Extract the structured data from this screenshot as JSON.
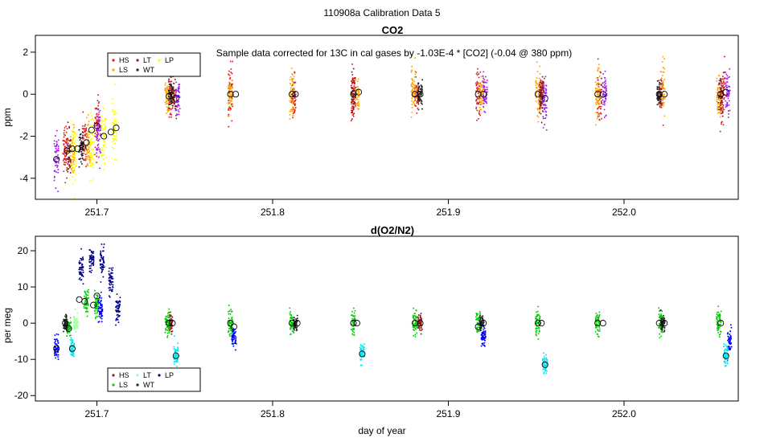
{
  "figure": {
    "suptitle": "110908a   Calibration Data 5",
    "xlabel": "day of year"
  },
  "legend": {
    "entries": [
      {
        "label": "HS",
        "co2_color": "#e41a1c",
        "o2_color": "#8b1a1a"
      },
      {
        "label": "LT",
        "co2_color": "#8b1a1a",
        "o2_color": "#a0ffa0"
      },
      {
        "label": "LP",
        "co2_color": "#ffff00",
        "o2_color": "#00008b"
      },
      {
        "label": "LS",
        "co2_color": "#ffa500",
        "o2_color": "#00cc00"
      },
      {
        "label": "WT",
        "co2_color": "#222222",
        "o2_color": "#222222"
      }
    ]
  },
  "chart_data": [
    {
      "type": "scatter",
      "title": "CO2",
      "annotation": "Sample data corrected for 13C in cal gases by -1.03E-4 * [CO2] (-0.04 @ 380 ppm)",
      "xlabel": "",
      "ylabel": "ppm",
      "xlim": [
        251.665,
        252.065
      ],
      "ylim": [
        -5.0,
        2.8
      ],
      "xticks": [
        251.7,
        251.8,
        251.9,
        252.0
      ],
      "xtick_labels": [
        "251.7",
        "251.8",
        "251.9",
        "252.0"
      ],
      "yticks": [
        2,
        0,
        -2,
        -4
      ],
      "ytick_labels": [
        "2",
        "0",
        "-2",
        "-4"
      ],
      "series": [
        {
          "name": "HS",
          "color": "#e41a1c",
          "clusters": [
            {
              "x": 251.682,
              "y": -2.6,
              "sd": 0.6
            },
            {
              "x": 251.693,
              "y": -2.3,
              "sd": 0.6
            },
            {
              "x": 251.7,
              "y": -1.5,
              "sd": 0.6
            },
            {
              "x": 251.742,
              "y": 0.0,
              "sd": 0.5
            },
            {
              "x": 251.776,
              "y": 0.0,
              "sd": 0.6
            },
            {
              "x": 251.812,
              "y": 0.0,
              "sd": 0.4
            },
            {
              "x": 251.846,
              "y": 0.0,
              "sd": 0.6
            },
            {
              "x": 251.882,
              "y": 0.0,
              "sd": 0.4
            },
            {
              "x": 251.917,
              "y": 0.0,
              "sd": 0.6
            },
            {
              "x": 251.953,
              "y": 0.0,
              "sd": 0.4
            },
            {
              "x": 251.986,
              "y": 0.0,
              "sd": 0.6
            },
            {
              "x": 252.021,
              "y": 0.0,
              "sd": 0.4
            },
            {
              "x": 252.056,
              "y": 0.0,
              "sd": 0.7
            }
          ]
        },
        {
          "name": "LS",
          "color": "#ffa500",
          "clusters": [
            {
              "x": 251.686,
              "y": -2.9,
              "sd": 0.6
            },
            {
              "x": 251.695,
              "y": -2.5,
              "sd": 0.6
            },
            {
              "x": 251.74,
              "y": -0.1,
              "sd": 0.4
            },
            {
              "x": 251.776,
              "y": 0.0,
              "sd": 0.4
            },
            {
              "x": 251.811,
              "y": 0.0,
              "sd": 0.6
            },
            {
              "x": 251.848,
              "y": 0.0,
              "sd": 0.4
            },
            {
              "x": 251.88,
              "y": 0.0,
              "sd": 0.6
            },
            {
              "x": 251.919,
              "y": 0.0,
              "sd": 0.4
            },
            {
              "x": 251.951,
              "y": 0.0,
              "sd": 0.6
            },
            {
              "x": 251.985,
              "y": 0.0,
              "sd": 0.6
            },
            {
              "x": 252.022,
              "y": 0.0,
              "sd": 0.6
            },
            {
              "x": 252.054,
              "y": 0.0,
              "sd": 0.5
            }
          ]
        },
        {
          "name": "LT",
          "color": "#8b1a1a",
          "clusters": [
            {
              "x": 251.684,
              "y": -2.7,
              "sd": 0.5
            },
            {
              "x": 251.744,
              "y": -0.2,
              "sd": 0.4
            },
            {
              "x": 251.846,
              "y": 0.0,
              "sd": 0.5
            },
            {
              "x": 251.953,
              "y": -0.1,
              "sd": 0.4
            },
            {
              "x": 252.055,
              "y": 0.0,
              "sd": 0.4
            }
          ]
        },
        {
          "name": "WT",
          "color": "#222222",
          "clusters": [
            {
              "x": 251.691,
              "y": -2.5,
              "sd": 0.4
            },
            {
              "x": 251.742,
              "y": 0.0,
              "sd": 0.3
            },
            {
              "x": 251.884,
              "y": 0.0,
              "sd": 0.3
            },
            {
              "x": 252.02,
              "y": 0.0,
              "sd": 0.3
            }
          ]
        },
        {
          "name": "LP",
          "color": "#ffff00",
          "clusters": [
            {
              "x": 251.687,
              "y": -2.8,
              "sd": 0.7
            },
            {
              "x": 251.697,
              "y": -2.4,
              "sd": 0.7
            },
            {
              "x": 251.704,
              "y": -2.0,
              "sd": 0.7
            },
            {
              "x": 251.71,
              "y": -1.6,
              "sd": 0.7
            }
          ]
        },
        {
          "name": "purple",
          "color": "#a020f0",
          "clusters": [
            {
              "x": 251.677,
              "y": -3.1,
              "sd": 0.6
            },
            {
              "x": 251.701,
              "y": -1.6,
              "sd": 0.6
            },
            {
              "x": 251.746,
              "y": -0.2,
              "sd": 0.5
            },
            {
              "x": 251.921,
              "y": 0.0,
              "sd": 0.5
            },
            {
              "x": 251.955,
              "y": -0.2,
              "sd": 0.5
            },
            {
              "x": 251.989,
              "y": 0.0,
              "sd": 0.5
            },
            {
              "x": 252.059,
              "y": 0.0,
              "sd": 0.5
            }
          ]
        }
      ],
      "means": [
        {
          "x": 251.677,
          "y": -3.1
        },
        {
          "x": 251.683,
          "y": -2.7
        },
        {
          "x": 251.686,
          "y": -2.6
        },
        {
          "x": 251.689,
          "y": -2.6
        },
        {
          "x": 251.692,
          "y": -2.5
        },
        {
          "x": 251.694,
          "y": -2.3
        },
        {
          "x": 251.697,
          "y": -1.7
        },
        {
          "x": 251.7,
          "y": -1.5
        },
        {
          "x": 251.704,
          "y": -2.0
        },
        {
          "x": 251.708,
          "y": -1.8
        },
        {
          "x": 251.711,
          "y": -1.6
        },
        {
          "x": 251.741,
          "y": -0.1
        },
        {
          "x": 251.745,
          "y": -0.2
        },
        {
          "x": 251.776,
          "y": 0.0
        },
        {
          "x": 251.779,
          "y": 0.0
        },
        {
          "x": 251.811,
          "y": 0.0
        },
        {
          "x": 251.813,
          "y": 0.0
        },
        {
          "x": 251.846,
          "y": 0.0
        },
        {
          "x": 251.849,
          "y": 0.1
        },
        {
          "x": 251.881,
          "y": 0.0
        },
        {
          "x": 251.884,
          "y": 0.0
        },
        {
          "x": 251.917,
          "y": 0.0
        },
        {
          "x": 251.92,
          "y": 0.0
        },
        {
          "x": 251.951,
          "y": 0.0
        },
        {
          "x": 251.955,
          "y": -0.2
        },
        {
          "x": 251.985,
          "y": 0.0
        },
        {
          "x": 251.988,
          "y": 0.0
        },
        {
          "x": 252.02,
          "y": 0.0
        },
        {
          "x": 252.023,
          "y": 0.0
        },
        {
          "x": 252.055,
          "y": 0.0
        },
        {
          "x": 252.058,
          "y": 0.1
        }
      ]
    },
    {
      "type": "scatter",
      "title": "d(O2/N2)",
      "annotation": "",
      "xlabel": "day of year",
      "ylabel": "per meg",
      "xlim": [
        251.665,
        252.065
      ],
      "ylim": [
        -21.5,
        24.0
      ],
      "xticks": [
        251.7,
        251.8,
        251.9,
        252.0
      ],
      "xtick_labels": [
        "251.7",
        "251.8",
        "251.9",
        "252.0"
      ],
      "yticks": [
        20,
        10,
        0,
        -10,
        -20
      ],
      "ytick_labels": [
        "20",
        "10",
        "0",
        "-10",
        "-20"
      ],
      "series": [
        {
          "name": "HS",
          "color": "#8b1a1a",
          "clusters": [
            {
              "x": 251.742,
              "y": 0.0,
              "sd": 1.2
            },
            {
              "x": 251.884,
              "y": 0.0,
              "sd": 1.2
            }
          ]
        },
        {
          "name": "LS",
          "color": "#00cc00",
          "clusters": [
            {
              "x": 251.684,
              "y": -1.0,
              "sd": 1.5
            },
            {
              "x": 251.694,
              "y": 6.0,
              "sd": 1.5
            },
            {
              "x": 251.7,
              "y": 5.0,
              "sd": 1.5
            },
            {
              "x": 251.74,
              "y": 0.0,
              "sd": 1.8
            },
            {
              "x": 251.776,
              "y": 0.0,
              "sd": 1.8
            },
            {
              "x": 251.811,
              "y": 0.0,
              "sd": 1.5
            },
            {
              "x": 251.846,
              "y": 0.0,
              "sd": 1.8
            },
            {
              "x": 251.881,
              "y": 0.0,
              "sd": 1.8
            },
            {
              "x": 251.917,
              "y": 0.0,
              "sd": 1.5
            },
            {
              "x": 251.951,
              "y": 0.0,
              "sd": 1.8
            },
            {
              "x": 251.985,
              "y": 0.0,
              "sd": 1.5
            },
            {
              "x": 252.021,
              "y": 0.0,
              "sd": 1.8
            },
            {
              "x": 252.054,
              "y": 0.0,
              "sd": 1.8
            }
          ]
        },
        {
          "name": "LT",
          "color": "#a0ffa0",
          "clusters": [
            {
              "x": 251.688,
              "y": 0.0,
              "sd": 1.2
            }
          ]
        },
        {
          "name": "WT",
          "color": "#222222",
          "clusters": [
            {
              "x": 251.682,
              "y": 0.0,
              "sd": 1.2
            },
            {
              "x": 251.813,
              "y": 0.0,
              "sd": 1.0
            },
            {
              "x": 251.919,
              "y": 0.0,
              "sd": 1.0
            },
            {
              "x": 252.022,
              "y": 0.0,
              "sd": 1.0
            }
          ]
        },
        {
          "name": "LP",
          "color": "#00008b",
          "clusters": [
            {
              "x": 251.691,
              "y": 15.0,
              "sd": 1.8
            },
            {
              "x": 251.697,
              "y": 18.0,
              "sd": 1.8
            },
            {
              "x": 251.703,
              "y": 17.0,
              "sd": 1.8
            },
            {
              "x": 251.708,
              "y": 12.0,
              "sd": 1.8
            },
            {
              "x": 251.712,
              "y": 4.0,
              "sd": 2.0
            }
          ]
        },
        {
          "name": "blue",
          "color": "#0000ff",
          "clusters": [
            {
              "x": 251.677,
              "y": -7.0,
              "sd": 1.6
            },
            {
              "x": 251.702,
              "y": 4.0,
              "sd": 1.6
            },
            {
              "x": 251.778,
              "y": -4.0,
              "sd": 1.3
            },
            {
              "x": 251.92,
              "y": -4.0,
              "sd": 1.3
            },
            {
              "x": 252.06,
              "y": -5.0,
              "sd": 1.6
            }
          ]
        },
        {
          "name": "cyan",
          "color": "#00e5ee",
          "clusters": [
            {
              "x": 251.686,
              "y": -7.0,
              "sd": 1.4
            },
            {
              "x": 251.745,
              "y": -9.0,
              "sd": 1.4
            },
            {
              "x": 251.851,
              "y": -8.5,
              "sd": 1.4
            },
            {
              "x": 251.955,
              "y": -11.5,
              "sd": 1.4
            },
            {
              "x": 252.058,
              "y": -9.0,
              "sd": 1.6
            }
          ]
        }
      ],
      "means": [
        {
          "x": 251.677,
          "y": -7.0
        },
        {
          "x": 251.682,
          "y": 0.0
        },
        {
          "x": 251.684,
          "y": -1.5
        },
        {
          "x": 251.686,
          "y": -7.0
        },
        {
          "x": 251.69,
          "y": 6.5
        },
        {
          "x": 251.693,
          "y": 6.0
        },
        {
          "x": 251.698,
          "y": 5.0
        },
        {
          "x": 251.7,
          "y": 7.5
        },
        {
          "x": 251.741,
          "y": 0.0
        },
        {
          "x": 251.743,
          "y": 0.0
        },
        {
          "x": 251.745,
          "y": -9.0
        },
        {
          "x": 251.776,
          "y": 0.0
        },
        {
          "x": 251.778,
          "y": -1.0
        },
        {
          "x": 251.811,
          "y": 0.0
        },
        {
          "x": 251.814,
          "y": 0.0
        },
        {
          "x": 251.846,
          "y": 0.0
        },
        {
          "x": 251.848,
          "y": 0.0
        },
        {
          "x": 251.851,
          "y": -8.5
        },
        {
          "x": 251.881,
          "y": 0.0
        },
        {
          "x": 251.884,
          "y": 0.0
        },
        {
          "x": 251.917,
          "y": -1.0
        },
        {
          "x": 251.92,
          "y": 0.0
        },
        {
          "x": 251.951,
          "y": 0.0
        },
        {
          "x": 251.953,
          "y": 0.0
        },
        {
          "x": 251.955,
          "y": -11.5
        },
        {
          "x": 251.985,
          "y": 0.0
        },
        {
          "x": 251.988,
          "y": 0.0
        },
        {
          "x": 252.02,
          "y": 0.0
        },
        {
          "x": 252.023,
          "y": 0.0
        },
        {
          "x": 252.055,
          "y": 0.0
        },
        {
          "x": 252.058,
          "y": -9.0
        }
      ]
    }
  ]
}
